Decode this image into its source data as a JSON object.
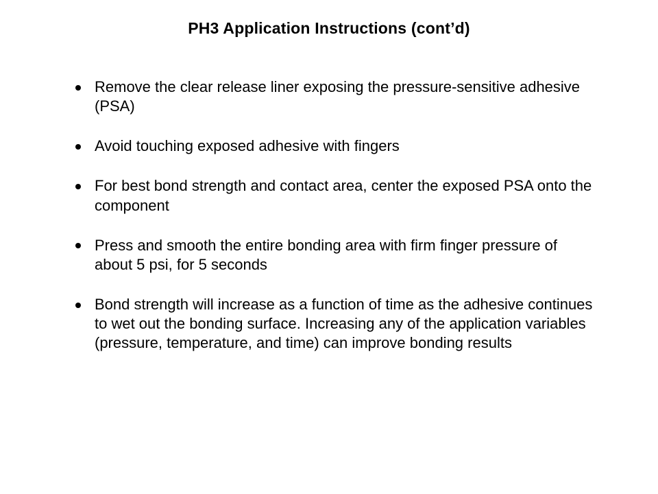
{
  "title": "PH3 Application Instructions (cont’d)",
  "bullets": [
    "Remove the clear release liner exposing the pressure-sensitive adhesive (PSA)",
    "Avoid touching exposed adhesive with fingers",
    "For best bond strength and contact area, center the exposed PSA onto the component",
    "Press and smooth the entire bonding area with firm finger pressure of about 5 psi, for 5 seconds",
    "Bond strength will increase as a function of time as the adhesive continues to wet out the bonding surface. Increasing any of the application variables (pressure, temperature, and time) can improve bonding results"
  ]
}
